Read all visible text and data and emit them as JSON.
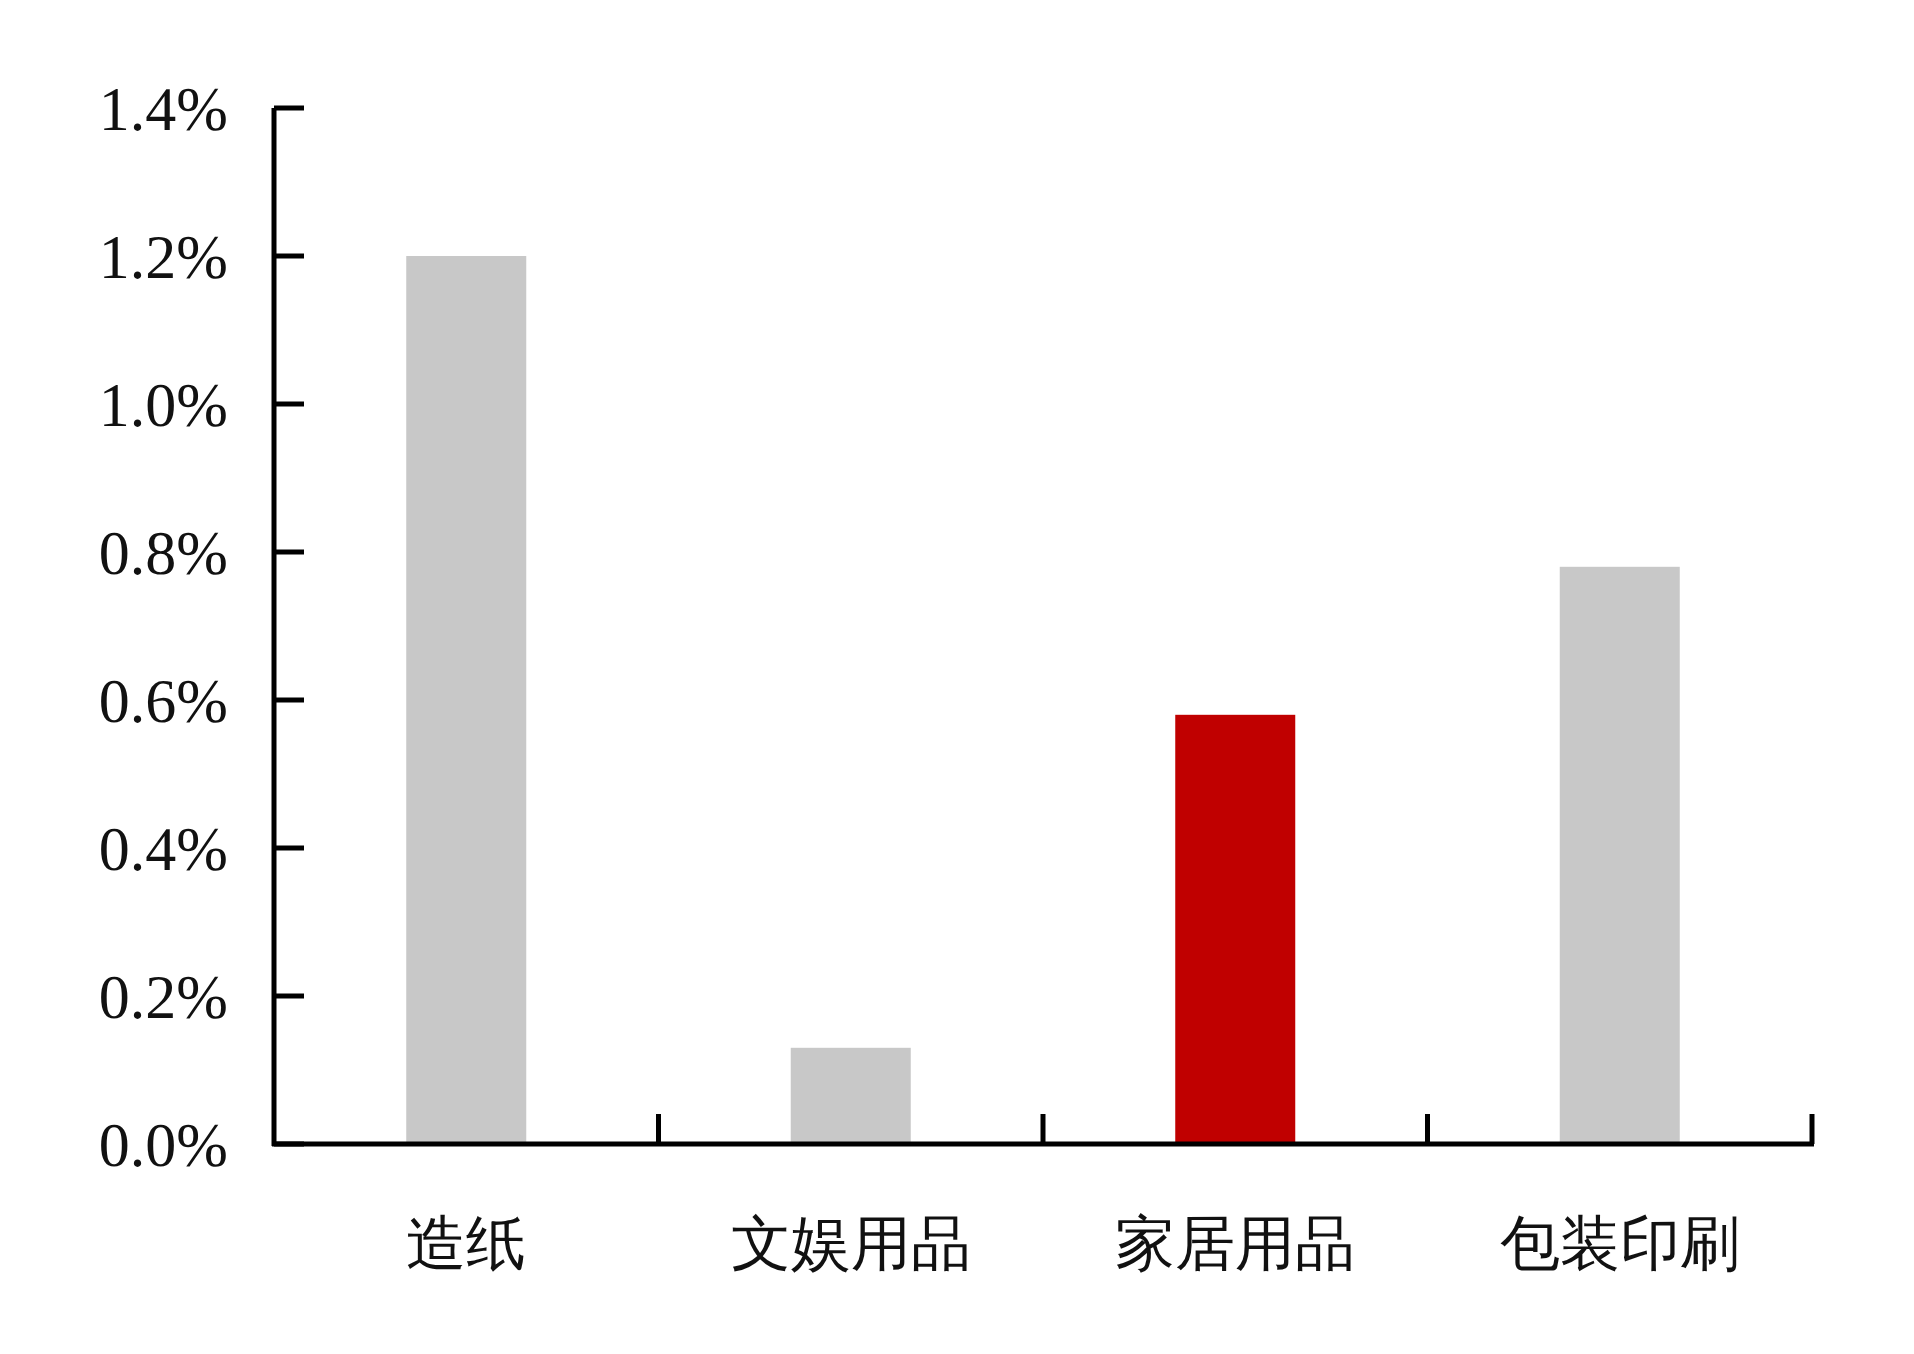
{
  "chart_data": {
    "type": "bar",
    "categories": [
      "造纸",
      "文娱用品",
      "家居用品",
      "包装印刷"
    ],
    "values": [
      1.2,
      0.13,
      0.58,
      0.78
    ],
    "colors": [
      "#c8c8c8",
      "#c8c8c8",
      "#c00000",
      "#c8c8c8"
    ],
    "ylim": [
      0,
      1.4
    ],
    "yticks": [
      {
        "value": 0,
        "label": "0.0%"
      },
      {
        "value": 0.2,
        "label": "0.2%"
      },
      {
        "value": 0.4,
        "label": "0.4%"
      },
      {
        "value": 0.6,
        "label": "0.6%"
      },
      {
        "value": 0.8,
        "label": "0.8%"
      },
      {
        "value": 1.0,
        "label": "1.0%"
      },
      {
        "value": 1.2,
        "label": "1.2%"
      },
      {
        "value": 1.4,
        "label": "1.4%"
      }
    ],
    "grid": false
  }
}
